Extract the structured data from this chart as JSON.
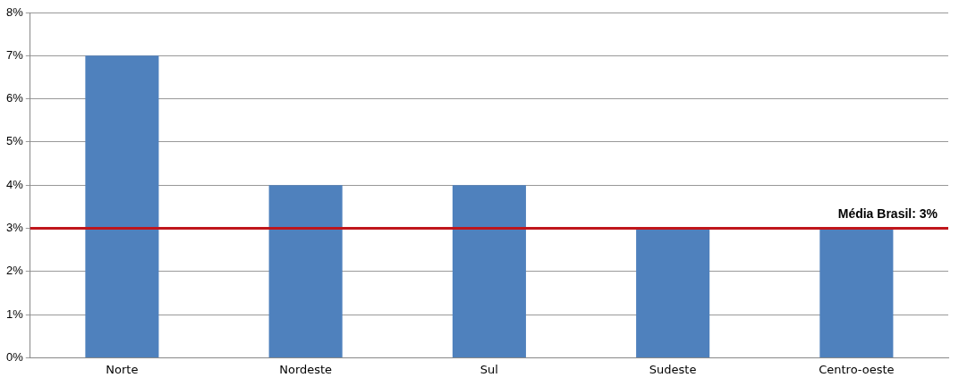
{
  "chart_data": {
    "type": "bar",
    "categories": [
      "Norte",
      "Nordeste",
      "Sul",
      "Sudeste",
      "Centro-oeste"
    ],
    "values": [
      7,
      4,
      4,
      3,
      3
    ],
    "color": "#4f81bd",
    "ylim": [
      0,
      8
    ],
    "yticks": [
      {
        "value": 0,
        "label": "0%"
      },
      {
        "value": 1,
        "label": "1%"
      },
      {
        "value": 2,
        "label": "2%"
      },
      {
        "value": 3,
        "label": "3%"
      },
      {
        "value": 4,
        "label": "4%"
      },
      {
        "value": 5,
        "label": "5%"
      },
      {
        "value": 6,
        "label": "6%"
      },
      {
        "value": 7,
        "label": "7%"
      },
      {
        "value": 8,
        "label": "8%"
      }
    ],
    "grid": "y",
    "ref_lines": [
      {
        "axis": "y",
        "value": 3,
        "label": "Média Brasil: 3%",
        "color": "#c0161b"
      }
    ]
  }
}
